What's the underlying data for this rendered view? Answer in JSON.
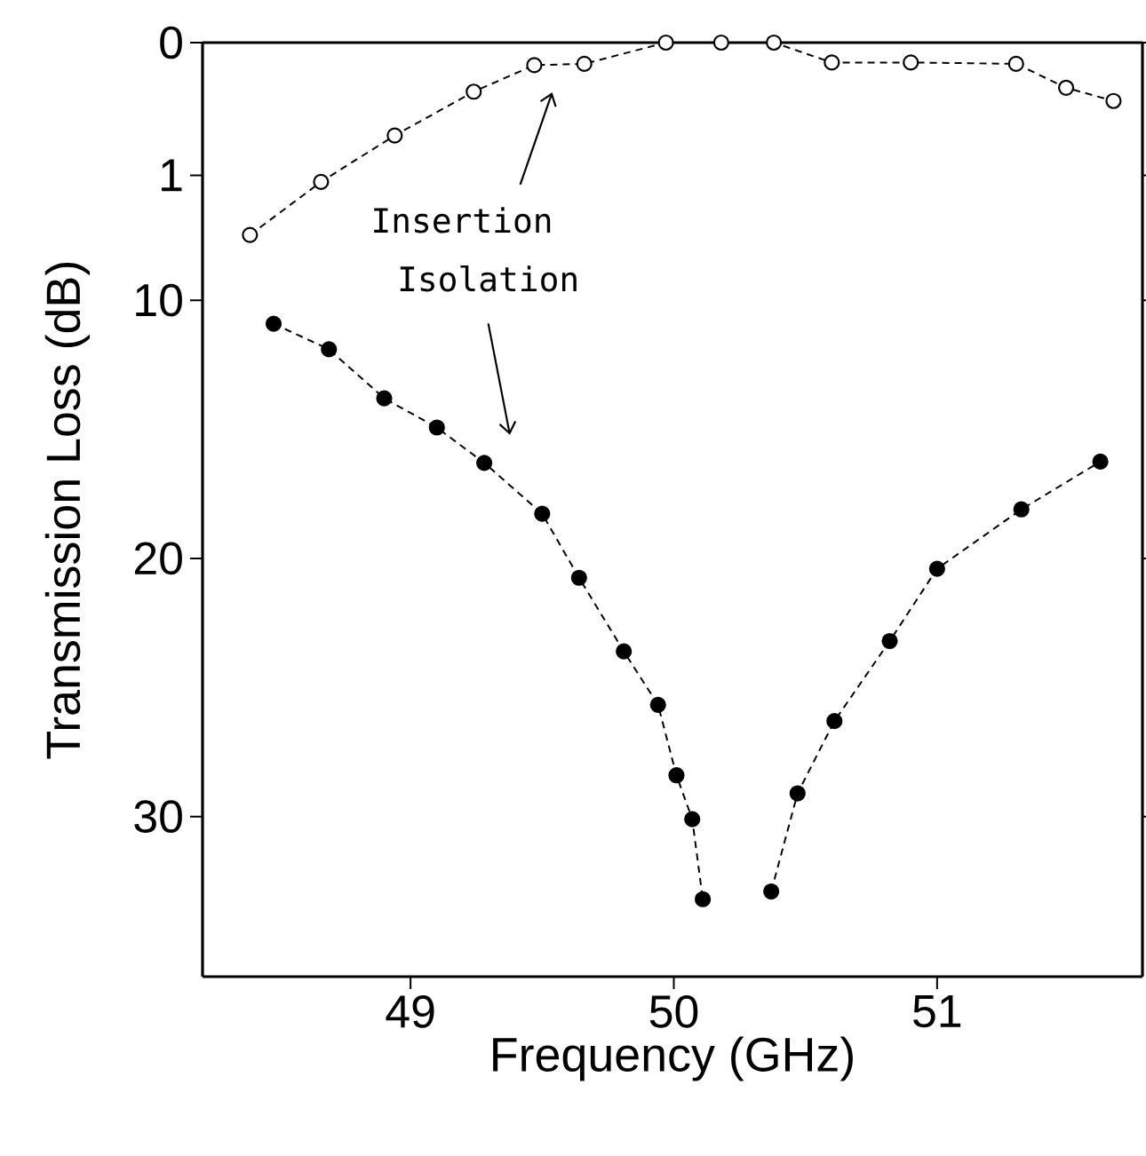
{
  "chart_data": [
    {
      "type": "line",
      "xlim": [
        48.21,
        51.78
      ],
      "ylim": [
        1.66,
        0
      ],
      "yticks": [
        0,
        1
      ],
      "tick_labels": "y",
      "marker": "circle",
      "line_style": "dashed",
      "grid": false,
      "series": [
        {
          "color": "#000000",
          "x": [
            48.39,
            48.66,
            48.94,
            49.24,
            49.47,
            49.66,
            49.97,
            50.18,
            50.38,
            50.6,
            50.9,
            51.3,
            51.49,
            51.67
          ],
          "values": [
            1.45,
            1.05,
            0.7,
            0.37,
            0.17,
            0.16,
            0,
            0,
            0,
            0.15,
            0.15,
            0.16,
            0.34,
            0.44
          ]
        }
      ],
      "annotations": [
        "Insertion"
      ]
    },
    {
      "type": "line",
      "xlim": [
        48.21,
        51.78
      ],
      "ylim": [
        36.2,
        8.55
      ],
      "xticks": [
        49,
        50,
        51
      ],
      "yticks": [
        10,
        20,
        30
      ],
      "xlabel": "Frequency (GHz)",
      "ylabel": "Transmission Loss (dB)",
      "marker": "circle",
      "line_style": "dashed",
      "grid": false,
      "series": [
        {
          "color": "#000000",
          "x": [
            48.48,
            48.69,
            48.9,
            49.1,
            49.28,
            49.5,
            49.64,
            49.81,
            49.94,
            50.01,
            50.07,
            50.11,
            50.24,
            50.37,
            50.47,
            50.61,
            50.82,
            51.0,
            51.32,
            51.62
          ],
          "values": [
            10.91,
            11.9,
            13.8,
            14.93,
            16.3,
            18.27,
            20.75,
            23.6,
            25.67,
            28.4,
            30.1,
            33.2,
            null,
            32.9,
            29.1,
            26.3,
            23.2,
            20.4,
            18.1,
            16.25
          ]
        }
      ],
      "annotations": [
        "Isolation"
      ]
    }
  ]
}
